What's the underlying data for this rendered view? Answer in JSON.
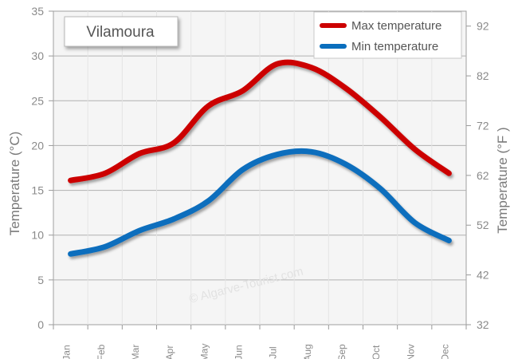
{
  "chart_data": {
    "type": "line",
    "title": "Vilamoura",
    "categories": [
      "Jan",
      "Feb",
      "Mar",
      "Apr",
      "May",
      "Jun",
      "Jul",
      "Aug",
      "Sep",
      "Oct",
      "Nov",
      "Dec"
    ],
    "series": [
      {
        "name": "Max temperature",
        "color": "#cc0000",
        "values": [
          16.1,
          16.9,
          19.1,
          20.3,
          24.4,
          26.1,
          29.1,
          28.7,
          26.4,
          23.2,
          19.6,
          16.9
        ]
      },
      {
        "name": "Min temperature",
        "color": "#0a6ebd",
        "values": [
          7.9,
          8.7,
          10.5,
          11.8,
          13.8,
          17.3,
          19.0,
          19.3,
          17.9,
          15.2,
          11.4,
          9.4
        ]
      }
    ],
    "ylabel": "Temperature (°C)",
    "ylabel_right": "Temperature (°F )",
    "ylim": [
      0,
      35
    ],
    "yticks": [
      0,
      5,
      10,
      15,
      20,
      25,
      30,
      35
    ],
    "ylim_right": [
      32,
      95
    ],
    "yticks_right": [
      32,
      42,
      52,
      62,
      72,
      82,
      92
    ],
    "grid": true,
    "legend": "top-right",
    "watermark": "© Algarve-Tourist.com"
  }
}
